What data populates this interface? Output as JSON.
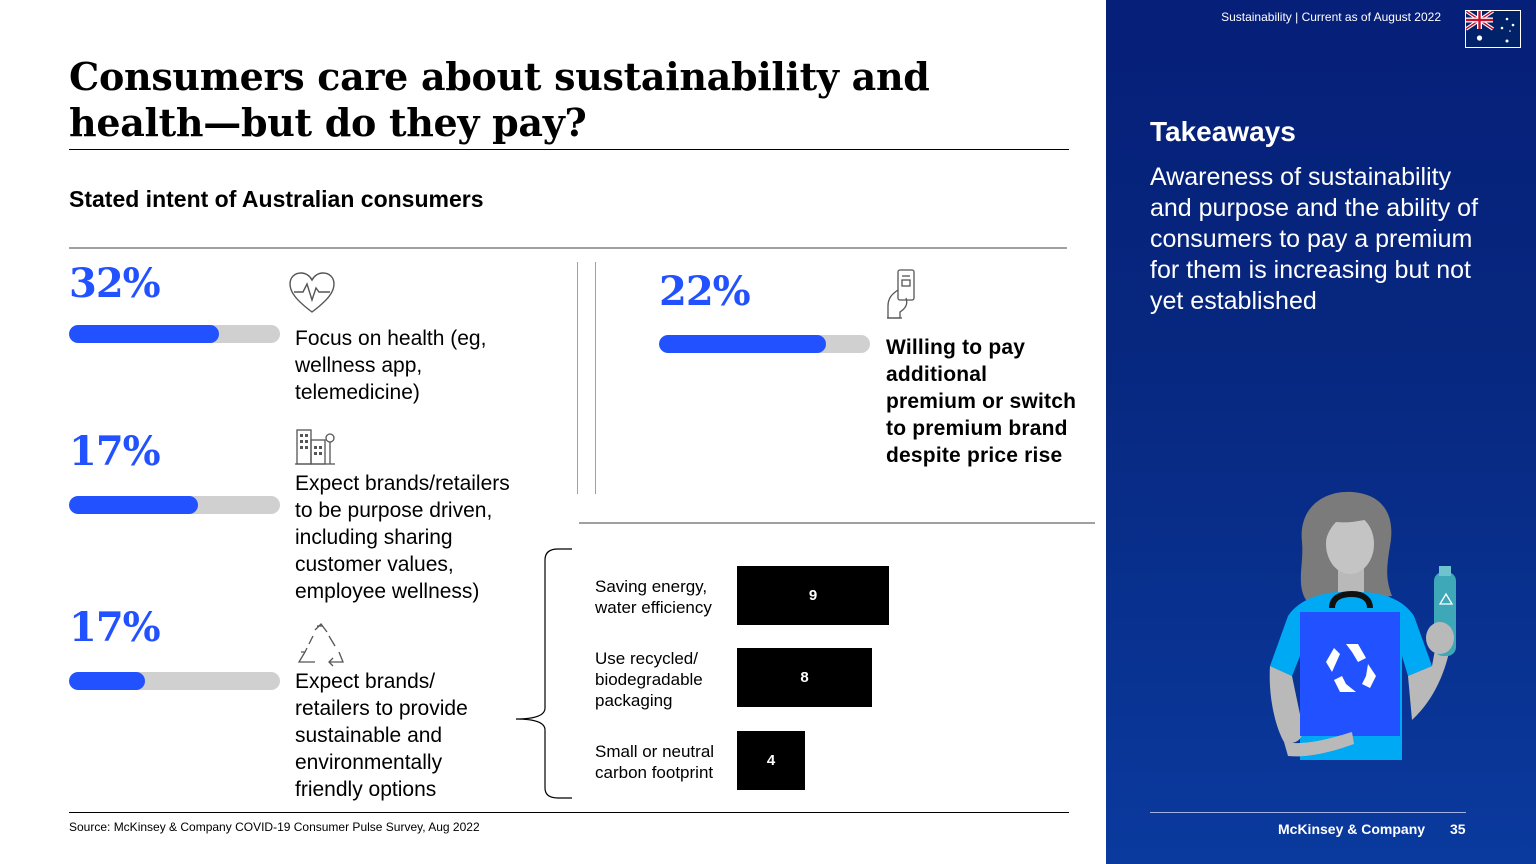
{
  "header": {
    "title_line1": "Consumers care about sustainability and",
    "title_line2": "health—but do they pay?",
    "subtitle": "Stated intent of Australian consumers"
  },
  "stats": [
    {
      "pct_label": "32%",
      "value": 32,
      "fill_fraction": 0.71,
      "icon": "heart-pulse-icon",
      "lines": [
        "Focus on health (eg,",
        "wellness app,",
        "telemedicine)"
      ]
    },
    {
      "pct_label": "17%",
      "value": 17,
      "fill_fraction": 0.61,
      "icon": "buildings-icon",
      "lines": [
        "Expect brands/retailers",
        "to be purpose driven,",
        "including sharing",
        "customer values,",
        "employee wellness)"
      ]
    },
    {
      "pct_label": "17%",
      "value": 17,
      "fill_fraction": 0.36,
      "icon": "recycle-icon",
      "lines": [
        "Expect brands/",
        "retailers to provide",
        "sustainable and",
        "environmentally",
        "friendly options"
      ]
    }
  ],
  "premium": {
    "pct_label": "22%",
    "value": 22,
    "fill_fraction": 0.79,
    "icon": "hand-card-icon",
    "lines": [
      "Willing to pay",
      "additional",
      "premium or switch",
      "to premium brand",
      "despite price rise"
    ]
  },
  "chart_data": {
    "type": "bar",
    "orientation": "horizontal",
    "categories": [
      [
        "Saving energy,",
        "water efficiency"
      ],
      [
        "Use recycled/",
        "biodegradable",
        "packaging"
      ],
      [
        "Small or neutral",
        "carbon footprint"
      ]
    ],
    "values": [
      9,
      8,
      4
    ],
    "value_labels": [
      "9",
      "8",
      "4"
    ],
    "bar_color": "#000000"
  },
  "source": "Source: McKinsey & Company COVID-19 Consumer Pulse Survey, Aug 2022",
  "panel": {
    "tag": "Sustainability | Current as of August 2022",
    "flag_icon": "australia-flag-icon",
    "takeaways_heading": "Takeaways",
    "takeaways_text": "Awareness of sustainability and purpose and the ability of consumers to pay a premium for them is increasing but not yet established",
    "brand": "McKinsey & Company",
    "page_number": "35"
  },
  "colors": {
    "accent": "#2251ff",
    "track": "#d0d0d0",
    "panel": "#061f79"
  }
}
